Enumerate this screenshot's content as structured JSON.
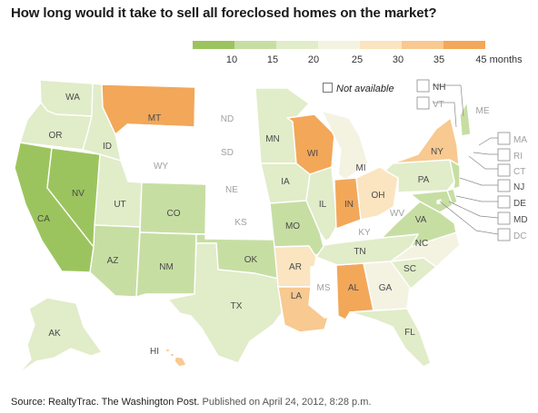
{
  "title": "How long would it take to sell all foreclosed homes on the market?",
  "legend": {
    "ticks": [
      "10",
      "15",
      "20",
      "25",
      "30",
      "35",
      "45 months"
    ],
    "colors": [
      "#9cc45e",
      "#c7dea3",
      "#e1ecc9",
      "#f4f3e2",
      "#fbe4c0",
      "#f8c990",
      "#f3a759"
    ],
    "not_available": "Not available",
    "na_color": "#ffffff"
  },
  "states": {
    "WA": "c3",
    "OR": "c3",
    "CA": "c1",
    "NV": "c1",
    "ID": "c3",
    "MT": "c7",
    "WY": "na",
    "UT": "c3",
    "AZ": "c2",
    "CO": "c2",
    "NM": "c2",
    "ND": "na",
    "SD": "na",
    "NE": "na",
    "KS": "na",
    "OK": "c2",
    "TX": "c3",
    "MN": "c3",
    "IA": "c3",
    "MO": "c2",
    "AR": "c5",
    "LA": "c6",
    "WI": "c7",
    "IL": "c3",
    "MS": "na",
    "AL": "c7",
    "MI": "c4",
    "IN": "c7",
    "KY": "na",
    "TN": "c3",
    "OH": "c5",
    "GA": "c4",
    "FL": "c3",
    "SC": "c3",
    "NC": "c4",
    "VA": "c2",
    "WV": "na",
    "PA": "c3",
    "NY": "c6",
    "ME": "na",
    "AK": "c3",
    "HI": "c6",
    "NH": "c2",
    "VT": "na",
    "MA": "na",
    "RI": "na",
    "CT": "na",
    "NJ": "c2",
    "DE": "c2",
    "MD": "c2",
    "DC": "na"
  },
  "source": {
    "text": "Source: RealtyTrac. The Washington Post.",
    "published": "Published on April 24, 2012, 8:28 p.m."
  }
}
